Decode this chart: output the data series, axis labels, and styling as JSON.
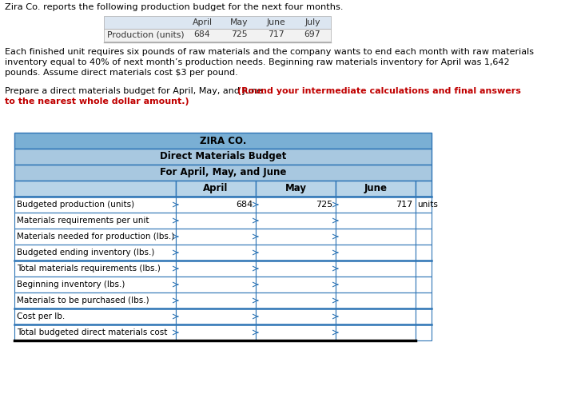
{
  "title_line1": "Zira Co. reports the following production budget for the next four months.",
  "top_table_headers": [
    "April",
    "May",
    "June",
    "July"
  ],
  "top_table_row_label": "Production (units)",
  "top_table_values": [
    "684",
    "725",
    "717",
    "697"
  ],
  "body_lines": [
    "Each finished unit requires six pounds of raw materials and the company wants to end each month with raw materials",
    "inventory equal to 40% of next month’s production needs. Beginning raw materials inventory for April was 1,642",
    "pounds. Assume direct materials cost $3 per pound."
  ],
  "prepare_text": "Prepare a direct materials budget for April, May, and June.",
  "round_text": "(Round your intermediate calculations and final answers",
  "round_text2": "to the nearest whole dollar amount.)",
  "company": "ZIRA CO.",
  "subtitle1": "Direct Materials Budget",
  "subtitle2": "For April, May, and June",
  "col_headers": [
    "April",
    "May",
    "June"
  ],
  "data_rows": [
    [
      "Budgeted production (units)",
      "684",
      "725",
      "717",
      "units"
    ],
    [
      "Materials requirements per unit",
      "",
      "",
      "",
      ""
    ],
    [
      "Materials needed for production (lbs.)",
      "",
      "",
      "",
      ""
    ],
    [
      "Budgeted ending inventory (lbs.)",
      "",
      "",
      "",
      ""
    ],
    [
      "Total materials requirements (lbs.)",
      "",
      "",
      "",
      ""
    ],
    [
      "Beginning inventory (lbs.)",
      "",
      "",
      "",
      ""
    ],
    [
      "Materials to be purchased (lbs.)",
      "",
      "",
      "",
      ""
    ],
    [
      "Cost per lb.",
      "",
      "",
      "",
      ""
    ],
    [
      "Total budgeted direct materials cost",
      "",
      "",
      "",
      ""
    ]
  ],
  "total_rows": [
    0,
    4,
    7,
    8
  ],
  "header_bg": "#7aafd4",
  "subheader_bg": "#a8c8e0",
  "col_header_bg": "#b8d4e8",
  "border_dark": "#2e75b6",
  "border_light": "#7aafd4",
  "top_table_bg_header": "#dce6f1",
  "top_table_bg_row": "#f2f2f2",
  "bg_color": "#ffffff",
  "text_color": "#000000",
  "red_color": "#c00000"
}
